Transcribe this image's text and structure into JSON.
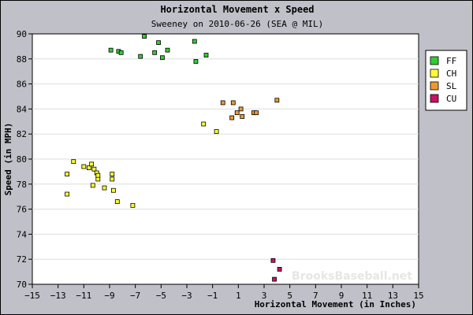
{
  "chart_data": {
    "type": "scatter",
    "title": "Horizontal Movement x Speed",
    "subtitle": "Sweeney on 2010-06-26 (SEA @ MIL)",
    "xlabel": "Horizontal Movement (in Inches)",
    "ylabel": "Speed (in MPH)",
    "xlim": [
      -15,
      15
    ],
    "ylim": [
      70,
      90
    ],
    "xticks": [
      -15,
      -13,
      -11,
      -9,
      -7,
      -5,
      -3,
      -1,
      1,
      3,
      5,
      7,
      9,
      11,
      13,
      15
    ],
    "yticks": [
      70,
      72,
      74,
      76,
      78,
      80,
      82,
      84,
      86,
      88,
      90
    ],
    "grid": true,
    "legend_position": "top-right",
    "watermark": "BrooksBaseball.net",
    "series": [
      {
        "name": "FF",
        "color": "#33cc33",
        "points": [
          [
            -6.3,
            89.8
          ],
          [
            -8.9,
            88.7
          ],
          [
            -8.3,
            88.6
          ],
          [
            -8.1,
            88.5
          ],
          [
            -5.5,
            88.5
          ],
          [
            -6.6,
            88.2
          ],
          [
            -5.2,
            89.3
          ],
          [
            -4.5,
            88.7
          ],
          [
            -4.9,
            88.1
          ],
          [
            -2.4,
            89.4
          ],
          [
            -2.3,
            87.8
          ],
          [
            -1.5,
            88.3
          ]
        ]
      },
      {
        "name": "CH",
        "color": "#ffff33",
        "points": [
          [
            -11.8,
            79.8
          ],
          [
            -12.3,
            78.8
          ],
          [
            -12.3,
            77.2
          ],
          [
            -11.0,
            79.4
          ],
          [
            -10.6,
            79.3
          ],
          [
            -10.4,
            79.6
          ],
          [
            -10.2,
            79.2
          ],
          [
            -10.0,
            78.9
          ],
          [
            -9.9,
            78.4
          ],
          [
            -9.9,
            78.7
          ],
          [
            -10.3,
            77.9
          ],
          [
            -9.4,
            77.7
          ],
          [
            -8.8,
            78.8
          ],
          [
            -8.8,
            78.4
          ],
          [
            -8.7,
            77.5
          ],
          [
            -8.4,
            76.6
          ],
          [
            -7.2,
            76.3
          ],
          [
            -1.7,
            82.8
          ],
          [
            -0.7,
            82.2
          ]
        ]
      },
      {
        "name": "SL",
        "color": "#ee9933",
        "points": [
          [
            -0.2,
            84.5
          ],
          [
            0.6,
            84.5
          ],
          [
            0.9,
            83.7
          ],
          [
            1.2,
            84.0
          ],
          [
            0.5,
            83.3
          ],
          [
            1.3,
            83.4
          ],
          [
            2.2,
            83.7
          ],
          [
            2.4,
            83.7
          ],
          [
            4.0,
            84.7
          ]
        ]
      },
      {
        "name": "CU",
        "color": "#cc1166",
        "points": [
          [
            3.7,
            71.9
          ],
          [
            3.8,
            70.4
          ],
          [
            4.2,
            71.2
          ]
        ]
      }
    ]
  }
}
